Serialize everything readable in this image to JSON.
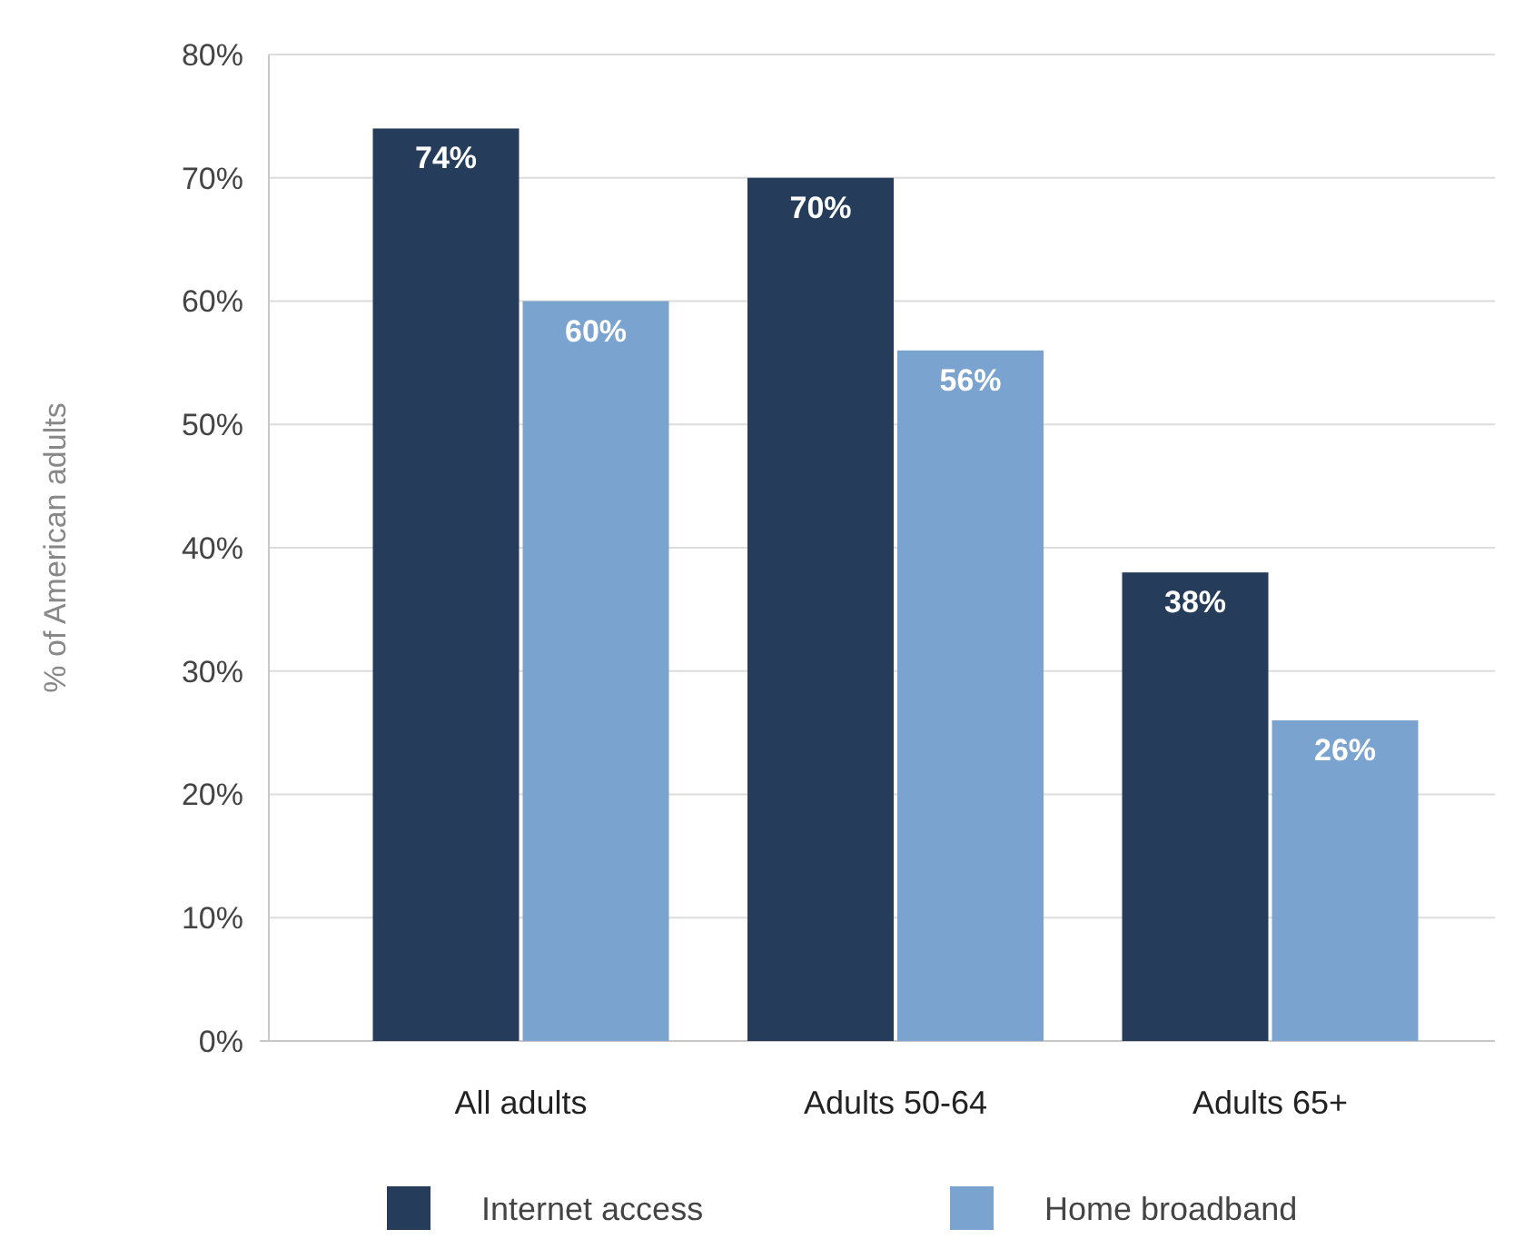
{
  "chart_data": {
    "type": "bar",
    "ylabel": "% of American adults",
    "categories": [
      "All adults",
      "Adults 50-64",
      "Adults 65+"
    ],
    "series": [
      {
        "name": "Internet access",
        "color": "#253d5b",
        "values": [
          74,
          70,
          38
        ],
        "value_labels": [
          "74%",
          "70%",
          "38%"
        ]
      },
      {
        "name": "Home broadband",
        "color": "#7ba3cf",
        "values": [
          60,
          56,
          26
        ],
        "value_labels": [
          "60%",
          "56%",
          "26%"
        ]
      }
    ],
    "ylim": [
      0,
      80
    ],
    "yticks": [
      {
        "value": 0,
        "label": "0%"
      },
      {
        "value": 10,
        "label": "10%"
      },
      {
        "value": 20,
        "label": "20%"
      },
      {
        "value": 30,
        "label": "30%"
      },
      {
        "value": 40,
        "label": "40%"
      },
      {
        "value": 50,
        "label": "50%"
      },
      {
        "value": 60,
        "label": "60%"
      },
      {
        "value": 70,
        "label": "70%"
      },
      {
        "value": 80,
        "label": "80%"
      }
    ],
    "grid": "y",
    "legend": "bottom"
  }
}
